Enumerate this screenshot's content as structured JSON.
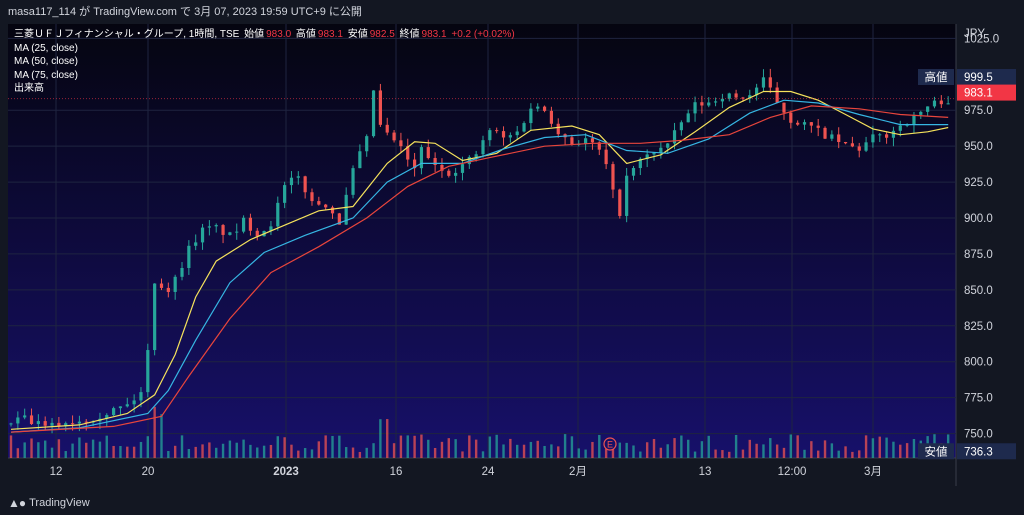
{
  "header": {
    "user": "masa117_114",
    "text": "が TradingView.com で 3月 07, 2023 19:59 UTC+9 に公開"
  },
  "legend": {
    "symbol": "三菱ＵＦＪフィナンシャル・グループ, 1時間, TSE",
    "open_label": "始値",
    "open": "983.0",
    "high_label": "高値",
    "high": "983.1",
    "low_label": "安値",
    "low": "982.5",
    "close_label": "終値",
    "close": "983.1",
    "change": "+0.2 (+0.02%)",
    "ma1": "MA (25, close)",
    "ma2": "MA (50, close)",
    "ma3": "MA (75, close)",
    "volume": "出来高"
  },
  "axis": {
    "currency": "JPY",
    "high_tag_label": "高値",
    "high_tag_value": "999.5",
    "last_price": "983.1",
    "low_tag_label": "安値",
    "low_tag_value": "736.3",
    "event_marker": "E"
  },
  "footer": {
    "brand": "TradingView"
  },
  "colors": {
    "up": "#26a69a",
    "down": "#ef5350",
    "ma25": "#f5e25c",
    "ma50": "#36b6e3",
    "ma75": "#e8453c",
    "tag_bg": "#1e2a4d",
    "last_bg": "#f23645"
  },
  "chart_data": {
    "type": "candlestick",
    "y_ticks": [
      1025.0,
      999.5,
      975.0,
      950.0,
      925.0,
      900.0,
      875.0,
      850.0,
      825.0,
      800.0,
      775.0,
      750.0
    ],
    "ylim": [
      733,
      1035
    ],
    "x_tick_labels": [
      "12",
      "20",
      "2023",
      "16",
      "24",
      "2月",
      "13",
      "12:00",
      "3月"
    ],
    "price_path": [
      [
        0,
        757
      ],
      [
        3,
        760
      ],
      [
        6,
        754
      ],
      [
        9,
        758
      ],
      [
        12,
        760
      ],
      [
        15,
        765
      ],
      [
        18,
        770
      ],
      [
        20,
        779
      ],
      [
        21,
        810
      ],
      [
        22,
        862
      ],
      [
        23,
        852
      ],
      [
        24,
        850
      ],
      [
        25,
        858
      ],
      [
        27,
        880
      ],
      [
        29,
        892
      ],
      [
        31,
        893
      ],
      [
        33,
        887
      ],
      [
        35,
        898
      ],
      [
        37,
        889
      ],
      [
        39,
        897
      ],
      [
        41,
        923
      ],
      [
        43,
        928
      ],
      [
        45,
        910
      ],
      [
        47,
        910
      ],
      [
        49,
        897
      ],
      [
        51,
        935
      ],
      [
        53,
        955
      ],
      [
        54,
        993
      ],
      [
        55,
        960
      ],
      [
        57,
        954
      ],
      [
        59,
        940
      ],
      [
        60,
        932
      ],
      [
        61,
        950
      ],
      [
        63,
        934
      ],
      [
        65,
        932
      ],
      [
        67,
        937
      ],
      [
        69,
        945
      ],
      [
        71,
        962
      ],
      [
        73,
        955
      ],
      [
        75,
        960
      ],
      [
        77,
        978
      ],
      [
        79,
        975
      ],
      [
        81,
        960
      ],
      [
        83,
        952
      ],
      [
        85,
        955
      ],
      [
        87,
        946
      ],
      [
        88,
        935
      ],
      [
        89,
        915
      ],
      [
        90,
        903
      ],
      [
        91,
        930
      ],
      [
        93,
        940
      ],
      [
        95,
        947
      ],
      [
        97,
        951
      ],
      [
        99,
        967
      ],
      [
        101,
        979
      ],
      [
        103,
        980
      ],
      [
        105,
        986
      ],
      [
        107,
        983
      ],
      [
        109,
        986
      ],
      [
        111,
        996
      ],
      [
        113,
        980
      ],
      [
        115,
        968
      ],
      [
        117,
        965
      ],
      [
        119,
        960
      ],
      [
        121,
        955
      ],
      [
        123,
        950
      ],
      [
        125,
        948
      ],
      [
        127,
        956
      ],
      [
        129,
        958
      ],
      [
        131,
        965
      ],
      [
        133,
        970
      ],
      [
        135,
        978
      ],
      [
        137,
        982
      ]
    ],
    "ma_series": [
      {
        "name": "MA (25, close)",
        "color": "#f5e25c",
        "points": [
          [
            0,
            753
          ],
          [
            10,
            756
          ],
          [
            17,
            764
          ],
          [
            21,
            777
          ],
          [
            24,
            805
          ],
          [
            27,
            845
          ],
          [
            30,
            870
          ],
          [
            35,
            885
          ],
          [
            40,
            895
          ],
          [
            45,
            905
          ],
          [
            50,
            908
          ],
          [
            55,
            938
          ],
          [
            59,
            953
          ],
          [
            62,
            952
          ],
          [
            66,
            940
          ],
          [
            71,
            945
          ],
          [
            76,
            961
          ],
          [
            82,
            964
          ],
          [
            86,
            958
          ],
          [
            90,
            938
          ],
          [
            95,
            944
          ],
          [
            100,
            960
          ],
          [
            105,
            977
          ],
          [
            110,
            988
          ],
          [
            114,
            988
          ],
          [
            118,
            982
          ],
          [
            122,
            972
          ],
          [
            126,
            962
          ],
          [
            130,
            958
          ],
          [
            134,
            960
          ],
          [
            137,
            963
          ]
        ]
      },
      {
        "name": "MA (50, close)",
        "color": "#36b6e3",
        "points": [
          [
            0,
            751
          ],
          [
            10,
            754
          ],
          [
            20,
            764
          ],
          [
            23,
            780
          ],
          [
            27,
            815
          ],
          [
            32,
            855
          ],
          [
            37,
            876
          ],
          [
            43,
            888
          ],
          [
            50,
            900
          ],
          [
            55,
            925
          ],
          [
            60,
            938
          ],
          [
            66,
            938
          ],
          [
            72,
            948
          ],
          [
            78,
            956
          ],
          [
            84,
            958
          ],
          [
            90,
            947
          ],
          [
            96,
            945
          ],
          [
            102,
            955
          ],
          [
            108,
            973
          ],
          [
            113,
            982
          ],
          [
            118,
            980
          ],
          [
            124,
            972
          ],
          [
            130,
            965
          ],
          [
            137,
            965
          ]
        ]
      },
      {
        "name": "MA (75, close)",
        "color": "#e8453c",
        "points": [
          [
            0,
            751
          ],
          [
            15,
            755
          ],
          [
            22,
            762
          ],
          [
            26,
            790
          ],
          [
            32,
            830
          ],
          [
            38,
            862
          ],
          [
            45,
            880
          ],
          [
            52,
            900
          ],
          [
            58,
            922
          ],
          [
            64,
            936
          ],
          [
            70,
            942
          ],
          [
            78,
            950
          ],
          [
            85,
            952
          ],
          [
            92,
            952
          ],
          [
            98,
            954
          ],
          [
            105,
            958
          ],
          [
            111,
            970
          ],
          [
            117,
            978
          ],
          [
            124,
            976
          ],
          [
            130,
            972
          ],
          [
            137,
            970
          ]
        ]
      }
    ]
  }
}
